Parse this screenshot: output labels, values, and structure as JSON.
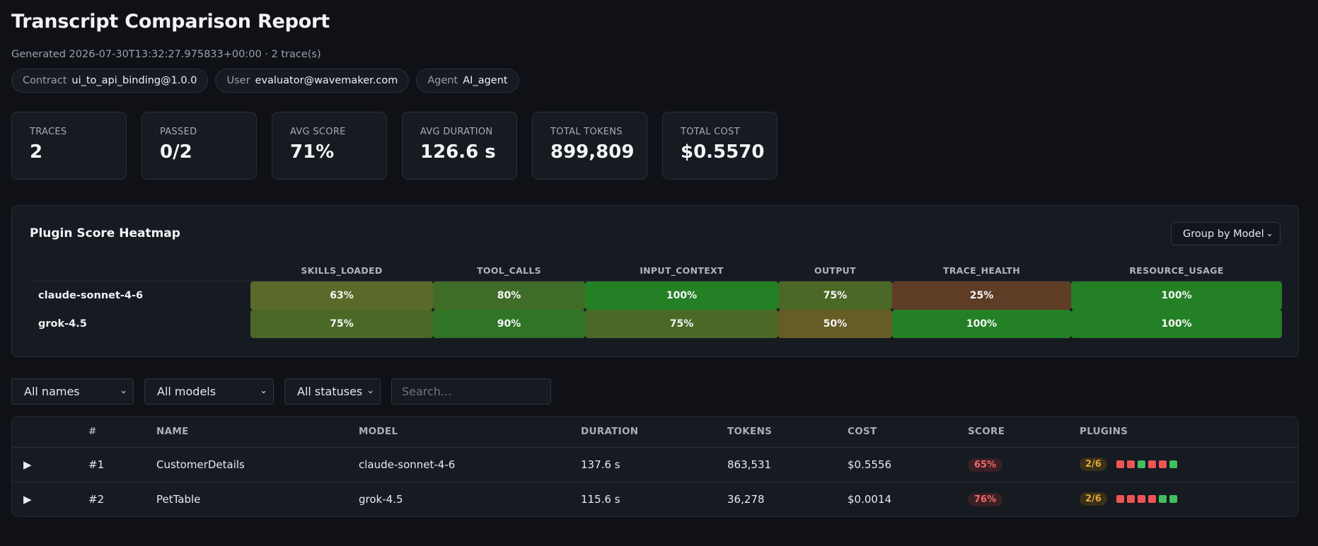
{
  "header": {
    "title": "Transcript Comparison Report",
    "generated": "Generated 2026-07-30T13:32:27.975833+00:00 · 2 trace(s)",
    "pills": [
      {
        "key": "Contract",
        "value": "ui_to_api_binding@1.0.0"
      },
      {
        "key": "User",
        "value": "evaluator@wavemaker.com"
      },
      {
        "key": "Agent",
        "value": "AI_agent"
      }
    ]
  },
  "stats": [
    {
      "label": "TRACES",
      "value": "2"
    },
    {
      "label": "PASSED",
      "value": "0/2"
    },
    {
      "label": "AVG SCORE",
      "value": "71%"
    },
    {
      "label": "AVG DURATION",
      "value": "126.6 s"
    },
    {
      "label": "TOTAL TOKENS",
      "value": "899,809"
    },
    {
      "label": "TOTAL COST",
      "value": "$0.5570"
    }
  ],
  "heatmap": {
    "title": "Plugin Score Heatmap",
    "group_by": "Group by Model",
    "columns": [
      "SKILLS_LOADED",
      "TOOL_CALLS",
      "INPUT_CONTEXT",
      "OUTPUT",
      "TRACE_HEALTH",
      "RESOURCE_USAGE"
    ],
    "rows": [
      {
        "label": "claude-sonnet-4-6",
        "cells": [
          {
            "text": "63%",
            "color": "#5a6a28"
          },
          {
            "text": "80%",
            "color": "#3f6c26"
          },
          {
            "text": "100%",
            "color": "#238024"
          },
          {
            "text": "75%",
            "color": "#4c6827"
          },
          {
            "text": "25%",
            "color": "#5e3c26"
          },
          {
            "text": "100%",
            "color": "#238024"
          }
        ]
      },
      {
        "label": "grok-4.5",
        "cells": [
          {
            "text": "75%",
            "color": "#4c6827"
          },
          {
            "text": "90%",
            "color": "#2f7525"
          },
          {
            "text": "75%",
            "color": "#4c6827"
          },
          {
            "text": "50%",
            "color": "#655c26"
          },
          {
            "text": "100%",
            "color": "#238024"
          },
          {
            "text": "100%",
            "color": "#238024"
          }
        ]
      }
    ]
  },
  "filters": {
    "names": "All names",
    "models": "All models",
    "statuses": "All statuses",
    "search_placeholder": "Search..."
  },
  "traces": {
    "columns": [
      "#",
      "NAME",
      "MODEL",
      "DURATION",
      "TOKENS",
      "COST",
      "SCORE",
      "PLUGINS"
    ],
    "rows": [
      {
        "index": "#1",
        "name": "CustomerDetails",
        "model": "claude-sonnet-4-6",
        "duration": "137.6 s",
        "tokens": "863,531",
        "cost": "$0.5556",
        "score": "65%",
        "plugins": "2/6",
        "plugin_dots": [
          "#ef5454",
          "#ef5454",
          "#3fbf5f",
          "#ef5454",
          "#ef5454",
          "#3fbf5f"
        ]
      },
      {
        "index": "#2",
        "name": "PetTable",
        "model": "grok-4.5",
        "duration": "115.6 s",
        "tokens": "36,278",
        "cost": "$0.0014",
        "score": "76%",
        "plugins": "2/6",
        "plugin_dots": [
          "#ef5454",
          "#ef5454",
          "#ef5454",
          "#ef5454",
          "#3fbf5f",
          "#3fbf5f"
        ]
      }
    ]
  },
  "icons": {
    "expand": "▶",
    "chevron": "⌄"
  }
}
